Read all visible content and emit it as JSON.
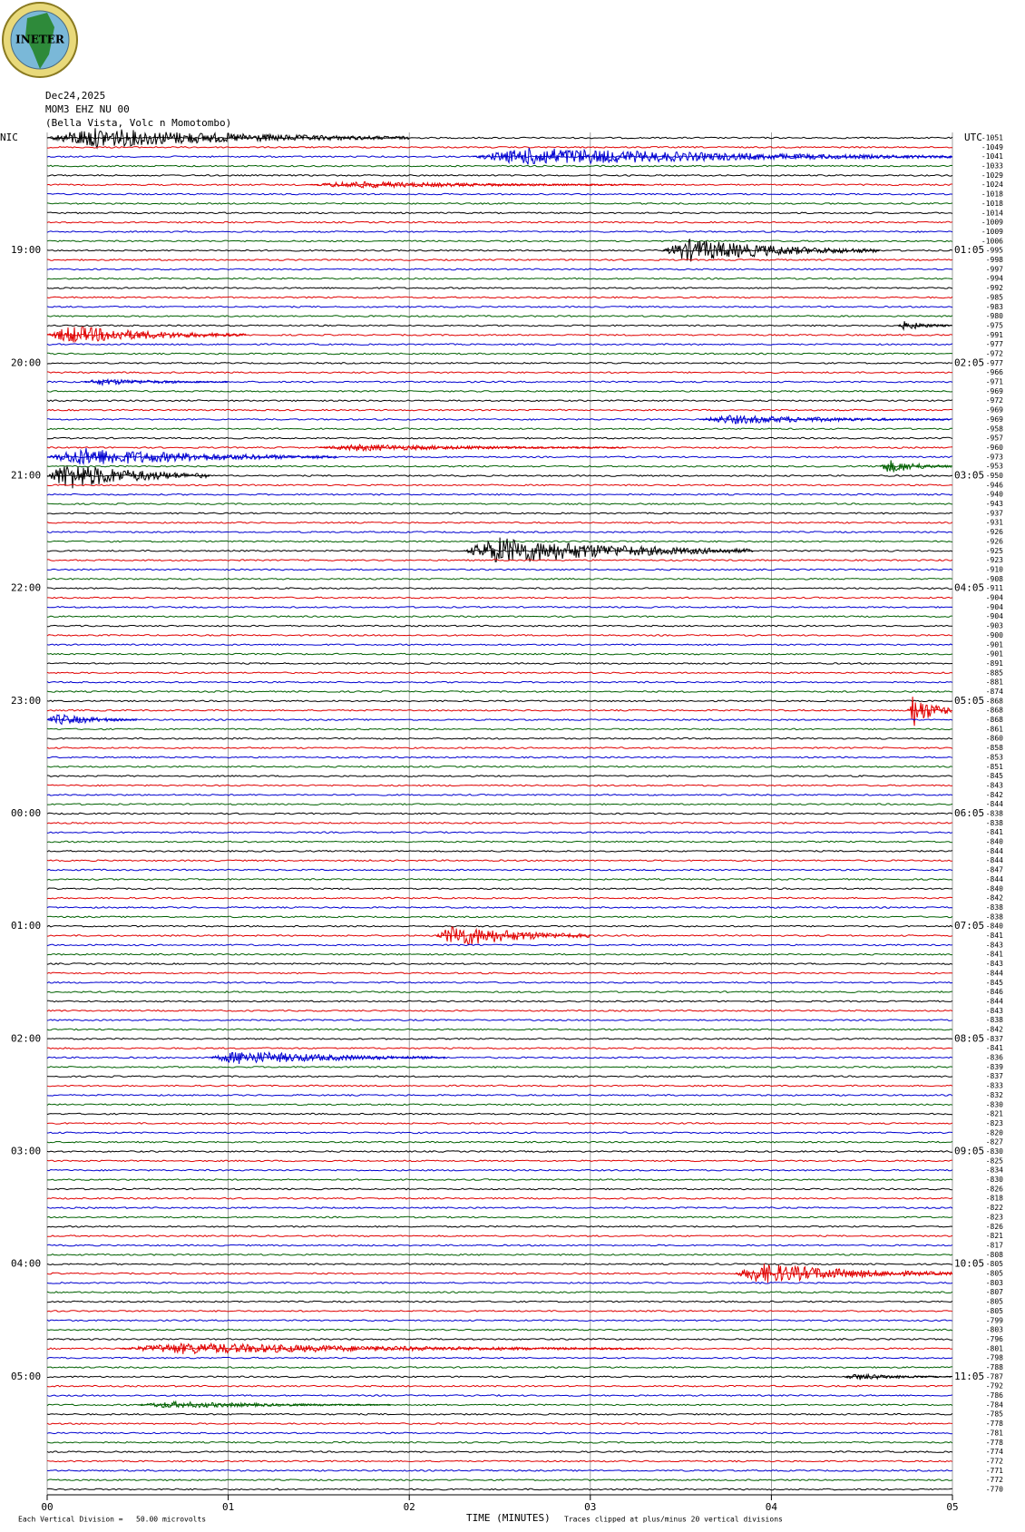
{
  "header": {
    "logo_text": "INETER",
    "date": "Dec24,2025",
    "station": "MOM3 EHZ NU 00",
    "location": "(Bella Vista, Volc n Momotombo)",
    "left_zone": "NIC",
    "right_zone": "UTC"
  },
  "chart_data": {
    "type": "helicorder",
    "xlabel": "TIME (MINUTES)",
    "xlim": [
      0,
      5
    ],
    "xticks": [
      {
        "value": 0,
        "label": "00"
      },
      {
        "value": 1,
        "label": "01"
      },
      {
        "value": 2,
        "label": "02"
      },
      {
        "value": 3,
        "label": "03"
      },
      {
        "value": 4,
        "label": "04"
      },
      {
        "value": 5,
        "label": "05"
      }
    ],
    "colors": [
      "#000000",
      "#e00000",
      "#0000d0",
      "#006000"
    ],
    "left_hours": [
      "19:00",
      "20:00",
      "21:00",
      "22:00",
      "23:00",
      "00:00",
      "01:00",
      "02:00",
      "03:00",
      "04:00",
      "05:00"
    ],
    "right_hours": [
      "01:05",
      "02:05",
      "03:05",
      "04:05",
      "05:05",
      "06:05",
      "07:05",
      "08:05",
      "09:05",
      "10:05",
      "11:05"
    ],
    "offsets": [
      -1051,
      -1049,
      -1041,
      -1033,
      -1029,
      -1024,
      -1018,
      -1018,
      -1014,
      -1009,
      -1009,
      -1006,
      -995,
      -998,
      -997,
      -994,
      -992,
      -985,
      -983,
      -980,
      -975,
      -991,
      -977,
      -972,
      -977,
      -966,
      -971,
      -969,
      -972,
      -969,
      -969,
      -958,
      -957,
      -960,
      -973,
      -953,
      -950,
      -946,
      -940,
      -943,
      -937,
      -931,
      -926,
      -926,
      -925,
      -923,
      -910,
      -908,
      -911,
      -904,
      -904,
      -904,
      -903,
      -900,
      -901,
      -901,
      -891,
      -885,
      -881,
      -874,
      -868,
      -868,
      -868,
      -861,
      -860,
      -858,
      -853,
      -851,
      -845,
      -843,
      -842,
      -844,
      -838,
      -838,
      -841,
      -840,
      -844,
      -844,
      -847,
      -844,
      -840,
      -842,
      -838,
      -838,
      -840,
      -841,
      -843,
      -841,
      -843,
      -844,
      -845,
      -846,
      -844,
      -843,
      -838,
      -842,
      -837,
      -841,
      -836,
      -839,
      -837,
      -833,
      -832,
      -830,
      -821,
      -823,
      -820,
      -827,
      -830,
      -825,
      -834,
      -830,
      -826,
      -818,
      -822,
      -823,
      -826,
      -821,
      -817,
      -808,
      -805,
      -805,
      -803,
      -807,
      -805,
      -805,
      -799,
      -803,
      -796,
      -801,
      -798,
      -788,
      -787,
      -792,
      -786,
      -784,
      -785,
      -778,
      -781,
      -778,
      -774,
      -772,
      -771,
      -772,
      -770
    ],
    "events": [
      {
        "row": 0,
        "start": 0,
        "end": 2.0,
        "amp": 0.9
      },
      {
        "row": 2,
        "start": 2.35,
        "end": 5,
        "amp": 0.8
      },
      {
        "row": 5,
        "start": 1.45,
        "end": 3.3,
        "amp": 0.3
      },
      {
        "row": 12,
        "start": 3.4,
        "end": 4.6,
        "amp": 1
      },
      {
        "row": 20,
        "start": 4.7,
        "end": 5,
        "amp": 0.4
      },
      {
        "row": 21,
        "start": 0,
        "end": 1.1,
        "amp": 0.8
      },
      {
        "row": 26,
        "start": 0.2,
        "end": 1.0,
        "amp": 0.3
      },
      {
        "row": 30,
        "start": 3.6,
        "end": 5,
        "amp": 0.4
      },
      {
        "row": 33,
        "start": 1.5,
        "end": 3.2,
        "amp": 0.3
      },
      {
        "row": 34,
        "start": 0,
        "end": 1.6,
        "amp": 0.8
      },
      {
        "row": 35,
        "start": 4.6,
        "end": 5,
        "amp": 0.6
      },
      {
        "row": 36,
        "start": 0,
        "end": 0.9,
        "amp": 1.2
      },
      {
        "row": 44,
        "start": 2.3,
        "end": 3.9,
        "amp": 1.2
      },
      {
        "row": 61,
        "start": 4.75,
        "end": 5,
        "amp": 1.5
      },
      {
        "row": 62,
        "start": 0,
        "end": 0.5,
        "amp": 0.5
      },
      {
        "row": 85,
        "start": 2.15,
        "end": 3.0,
        "amp": 1
      },
      {
        "row": 98,
        "start": 0.9,
        "end": 2.2,
        "amp": 0.6
      },
      {
        "row": 121,
        "start": 3.8,
        "end": 5,
        "amp": 0.9
      },
      {
        "row": 129,
        "start": 0.4,
        "end": 3.3,
        "amp": 0.5
      },
      {
        "row": 132,
        "start": 4.4,
        "end": 5,
        "amp": 0.3
      },
      {
        "row": 135,
        "start": 0.5,
        "end": 1.9,
        "amp": 0.3
      }
    ],
    "footer_left": "Each Vertical Division =   50.00 microvolts",
    "footer_right": "Traces clipped at plus/minus 20 vertical divisions"
  }
}
